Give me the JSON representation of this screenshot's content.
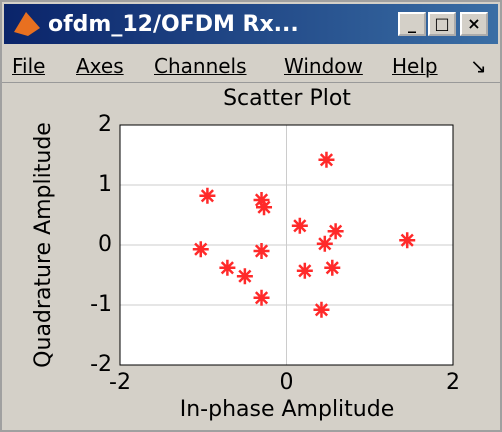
{
  "window": {
    "title": "ofdm_12/OFDM Rx...",
    "menu": [
      "File",
      "Axes",
      "Channels",
      "Window",
      "Help"
    ]
  },
  "chart_data": {
    "type": "scatter",
    "title": "Scatter Plot",
    "x_label": "In-phase Amplitude",
    "y_label": "Quadrature Amplitude",
    "series": [
      {
        "color": "#ff2a2a",
        "x": [
          0.48,
          -0.95,
          -0.3,
          -0.27,
          0.16,
          0.59,
          1.45,
          0.46,
          -1.03,
          -0.3,
          -0.71,
          -0.5,
          0.22,
          0.55,
          -0.3,
          0.42
        ],
        "values": [
          1.42,
          0.82,
          0.75,
          0.63,
          0.32,
          0.23,
          0.08,
          0.02,
          -0.07,
          -0.1,
          -0.38,
          -0.52,
          -0.43,
          -0.38,
          -0.88,
          -1.08
        ]
      }
    ],
    "xlim": [
      -2,
      2
    ],
    "ylim": [
      -2,
      2
    ],
    "xticks": [
      -2,
      0,
      2
    ],
    "yticks": [
      -2,
      -1,
      0,
      1,
      2
    ],
    "grid": true
  }
}
